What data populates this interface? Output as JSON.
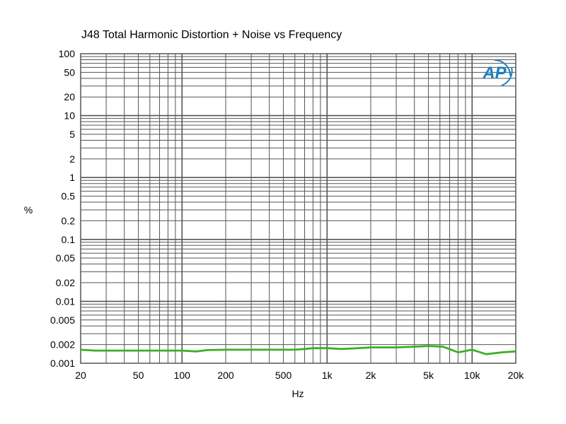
{
  "chart_data": {
    "type": "line",
    "title": "J48 Total Harmonic Distortion + Noise vs Frequency",
    "xlabel": "Hz",
    "ylabel": "%",
    "xscale": "log",
    "yscale": "log",
    "xlim": [
      20,
      20000
    ],
    "ylim": [
      0.001,
      100
    ],
    "grid": true,
    "logo": "AP",
    "colors": {
      "line": "#3cb022",
      "grid": "#555555",
      "logo": "#1a7fc1"
    },
    "x_ticks": [
      {
        "value": 20,
        "label": "20"
      },
      {
        "value": 50,
        "label": "50"
      },
      {
        "value": 100,
        "label": "100"
      },
      {
        "value": 200,
        "label": "200"
      },
      {
        "value": 500,
        "label": "500"
      },
      {
        "value": 1000,
        "label": "1k"
      },
      {
        "value": 2000,
        "label": "2k"
      },
      {
        "value": 5000,
        "label": "5k"
      },
      {
        "value": 10000,
        "label": "10k"
      },
      {
        "value": 20000,
        "label": "20k"
      }
    ],
    "y_ticks": [
      {
        "value": 100,
        "label": "100"
      },
      {
        "value": 50,
        "label": "50"
      },
      {
        "value": 20,
        "label": "20"
      },
      {
        "value": 10,
        "label": "10"
      },
      {
        "value": 5,
        "label": "5"
      },
      {
        "value": 2,
        "label": "2"
      },
      {
        "value": 1,
        "label": "1"
      },
      {
        "value": 0.5,
        "label": "0.5"
      },
      {
        "value": 0.2,
        "label": "0.2"
      },
      {
        "value": 0.1,
        "label": "0.1"
      },
      {
        "value": 0.05,
        "label": "0.05"
      },
      {
        "value": 0.02,
        "label": "0.02"
      },
      {
        "value": 0.01,
        "label": "0.01"
      },
      {
        "value": 0.005,
        "label": "0.005"
      },
      {
        "value": 0.002,
        "label": "0.002"
      },
      {
        "value": 0.001,
        "label": "0.001"
      }
    ],
    "series": [
      {
        "x": [
          20,
          25,
          30,
          40,
          50,
          60,
          70,
          80,
          100,
          125,
          150,
          200,
          250,
          300,
          400,
          500,
          600,
          700,
          800,
          1000,
          1250,
          1500,
          2000,
          2500,
          3000,
          4000,
          5000,
          6300,
          8000,
          10000,
          12500,
          16000,
          20000
        ],
        "y": [
          0.00165,
          0.0016,
          0.0016,
          0.0016,
          0.0016,
          0.0016,
          0.0016,
          0.0016,
          0.0016,
          0.00155,
          0.00163,
          0.00165,
          0.00165,
          0.00165,
          0.00165,
          0.00165,
          0.00165,
          0.0017,
          0.00175,
          0.00175,
          0.0017,
          0.00173,
          0.0018,
          0.0018,
          0.0018,
          0.00185,
          0.0019,
          0.00185,
          0.0015,
          0.00165,
          0.0014,
          0.0015,
          0.00155
        ]
      }
    ]
  }
}
